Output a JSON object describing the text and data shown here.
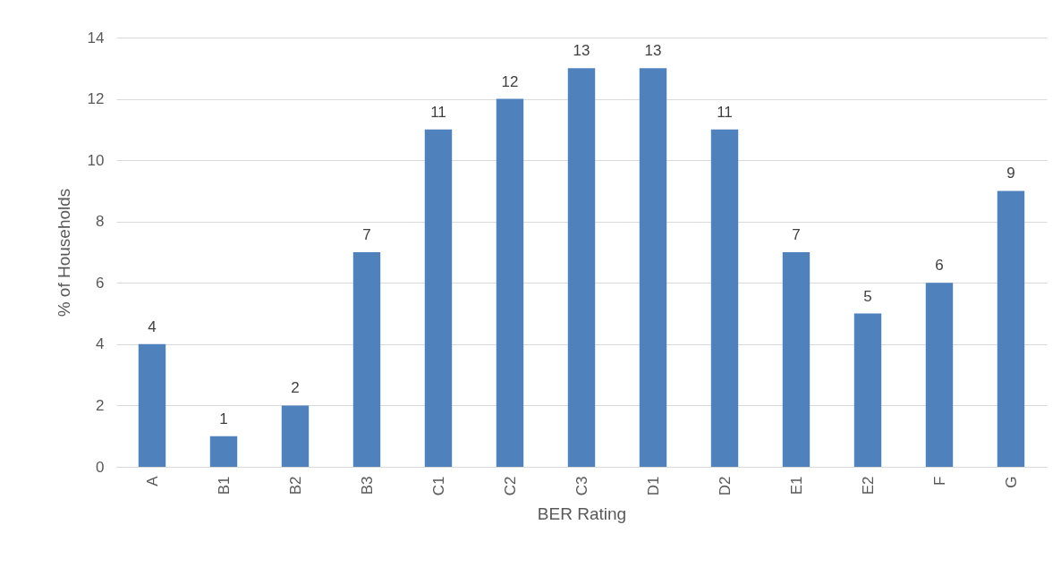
{
  "chart_data": {
    "type": "bar",
    "xlabel": "BER Rating",
    "ylabel": "% of Households",
    "categories": [
      "A",
      "B1",
      "B2",
      "B3",
      "C1",
      "C2",
      "C3",
      "D1",
      "D2",
      "E1",
      "E2",
      "F",
      "G"
    ],
    "values": [
      4,
      1,
      2,
      7,
      11,
      12,
      13,
      13,
      11,
      7,
      5,
      6,
      9
    ],
    "color": "#4f81bd",
    "ylim": [
      0,
      14
    ],
    "yticks": [
      0,
      2,
      4,
      6,
      8,
      10,
      12,
      14
    ],
    "grid": "y",
    "data_labels": true
  }
}
